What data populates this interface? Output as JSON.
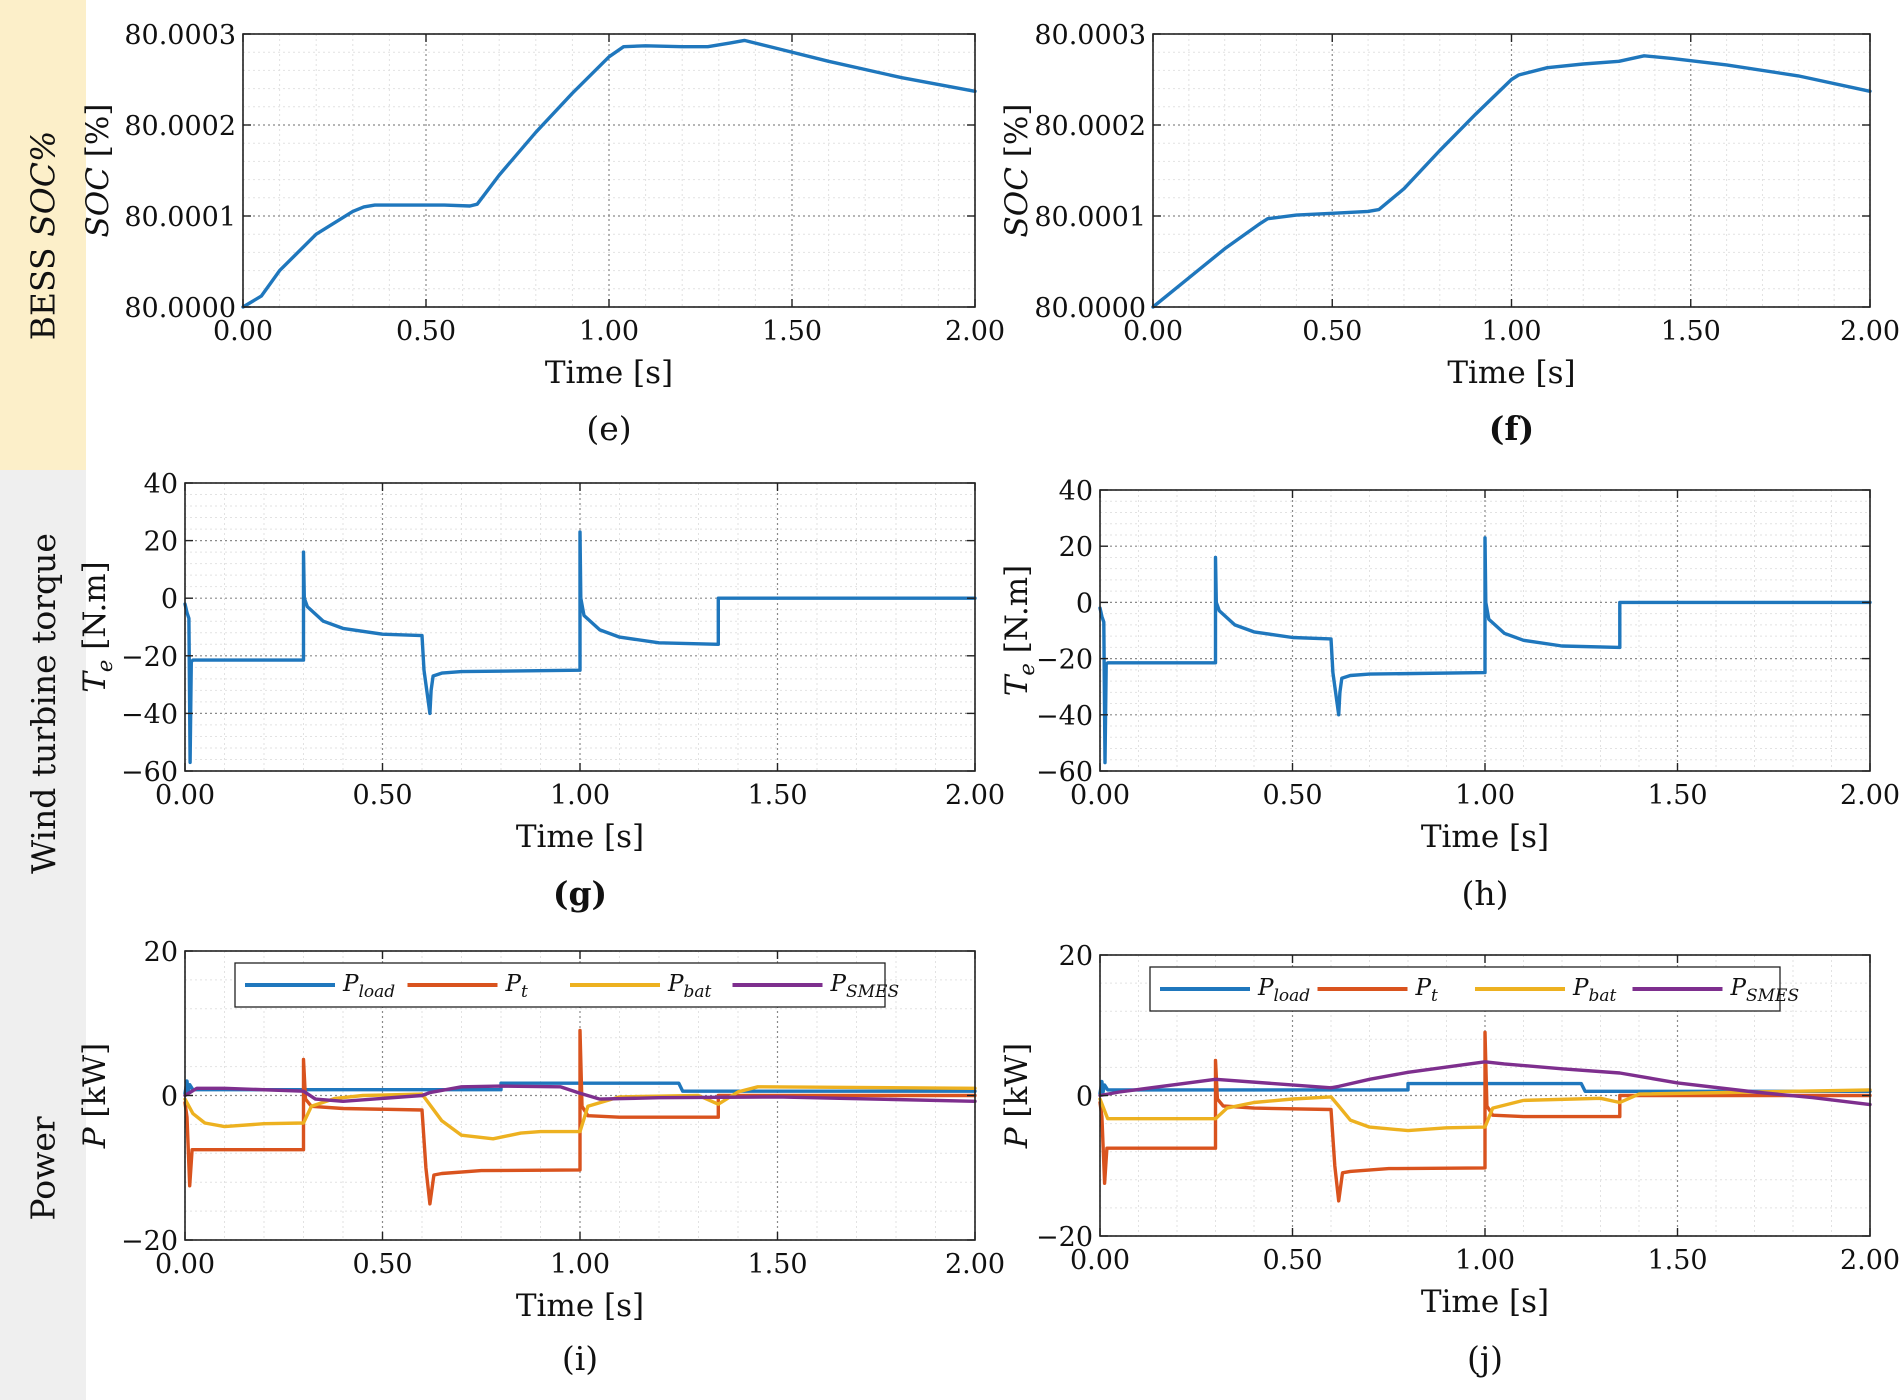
{
  "row_labels": {
    "soc_prefix": "BESS ",
    "soc_italic": "SOC%",
    "torque": "Wind turbine torque",
    "power": "Power"
  },
  "colors": {
    "band_soc": "#fcefc9",
    "band_other": "#efefef",
    "load": "#1f77bd",
    "pt": "#d9531e",
    "bat": "#edb120",
    "smes": "#7e2f8e",
    "soc_line": "#1f77bd"
  },
  "chart_data": [
    {
      "id": "e",
      "caption": "(e)",
      "caption_bold": false,
      "type": "line",
      "xlabel": "Time [s]",
      "ylabel": "SOC [%]",
      "xlim": [
        0,
        2
      ],
      "ylim": [
        0,
        3
      ],
      "xticks": [
        0,
        0.5,
        1,
        1.5,
        2
      ],
      "xtick_labels": [
        "0.00",
        "0.50",
        "1.00",
        "1.50",
        "2.00"
      ],
      "yticks": [
        0,
        1,
        2,
        3
      ],
      "ytick_labels": [
        "80.0000",
        "80.0001",
        "80.0002",
        "80.0003"
      ],
      "y_unit_note": "ticks in units of 1e-4 % above 80 %",
      "series": [
        {
          "name": "SOC",
          "color": "#1f77bd",
          "x": [
            0,
            0.05,
            0.1,
            0.2,
            0.3,
            0.33,
            0.36,
            0.45,
            0.55,
            0.62,
            0.64,
            0.7,
            0.8,
            0.9,
            1.0,
            1.04,
            1.1,
            1.2,
            1.27,
            1.33,
            1.37,
            1.45,
            1.6,
            1.8,
            2.0
          ],
          "y": [
            0,
            0.12,
            0.4,
            0.8,
            1.05,
            1.1,
            1.12,
            1.12,
            1.12,
            1.11,
            1.13,
            1.45,
            1.92,
            2.35,
            2.75,
            2.86,
            2.87,
            2.86,
            2.86,
            2.9,
            2.93,
            2.85,
            2.7,
            2.52,
            2.37
          ]
        }
      ]
    },
    {
      "id": "f",
      "caption": "(f)",
      "caption_bold": true,
      "type": "line",
      "xlabel": "Time [s]",
      "ylabel": "SOC [%]",
      "xlim": [
        0,
        2
      ],
      "ylim": [
        0,
        3
      ],
      "xticks": [
        0,
        0.5,
        1,
        1.5,
        2
      ],
      "xtick_labels": [
        "0.00",
        "0.50",
        "1.00",
        "1.50",
        "2.00"
      ],
      "yticks": [
        0,
        1,
        2,
        3
      ],
      "ytick_labels": [
        "80.0000",
        "80.0001",
        "80.0002",
        "80.0003"
      ],
      "y_unit_note": "ticks in units of 1e-4 % above 80 %",
      "series": [
        {
          "name": "SOC",
          "color": "#1f77bd",
          "x": [
            0,
            0.1,
            0.2,
            0.3,
            0.32,
            0.4,
            0.5,
            0.6,
            0.63,
            0.7,
            0.8,
            0.9,
            1.0,
            1.02,
            1.1,
            1.2,
            1.3,
            1.37,
            1.45,
            1.6,
            1.8,
            2.0
          ],
          "y": [
            0,
            0.32,
            0.64,
            0.92,
            0.97,
            1.01,
            1.03,
            1.05,
            1.07,
            1.3,
            1.72,
            2.12,
            2.5,
            2.55,
            2.63,
            2.67,
            2.7,
            2.76,
            2.73,
            2.66,
            2.54,
            2.37
          ]
        }
      ]
    },
    {
      "id": "g",
      "caption": "(g)",
      "caption_bold": true,
      "type": "line",
      "xlabel": "Time [s]",
      "ylabel": "Te [N.m]",
      "xlim": [
        0,
        2
      ],
      "ylim": [
        -60,
        40
      ],
      "xticks": [
        0,
        0.5,
        1,
        1.5,
        2
      ],
      "xtick_labels": [
        "0.00",
        "0.50",
        "1.00",
        "1.50",
        "2.00"
      ],
      "yticks": [
        -60,
        -40,
        -20,
        0,
        20,
        40
      ],
      "ytick_labels": [
        "−60",
        "−40",
        "−20",
        "0",
        "20",
        "40"
      ],
      "series": [
        {
          "name": "Te",
          "color": "#1f77bd",
          "x": [
            0,
            0.005,
            0.01,
            0.013,
            0.016,
            0.02,
            0.3,
            0.3,
            0.302,
            0.31,
            0.35,
            0.4,
            0.5,
            0.6,
            0.6,
            0.605,
            0.62,
            0.623,
            0.628,
            0.65,
            0.7,
            1.0,
            1.0,
            1.002,
            1.01,
            1.05,
            1.1,
            1.2,
            1.35,
            1.35,
            2.0
          ],
          "y": [
            -2,
            -5,
            -7,
            -57,
            -22,
            -21.5,
            -21.5,
            16,
            0,
            -3,
            -8,
            -10.5,
            -12.5,
            -13,
            -13,
            -25,
            -40,
            -32,
            -27,
            -26,
            -25.5,
            -25,
            23,
            0,
            -6,
            -11,
            -13.5,
            -15.5,
            -16,
            0,
            0
          ]
        }
      ]
    },
    {
      "id": "h",
      "caption": "(h)",
      "caption_bold": false,
      "type": "line",
      "xlabel": "Time [s]",
      "ylabel": "Te [N.m]",
      "xlim": [
        0,
        2
      ],
      "ylim": [
        -60,
        40
      ],
      "xticks": [
        0,
        0.5,
        1,
        1.5,
        2
      ],
      "xtick_labels": [
        "0.00",
        "0.50",
        "1.00",
        "1.50",
        "2.00"
      ],
      "yticks": [
        -60,
        -40,
        -20,
        0,
        20,
        40
      ],
      "ytick_labels": [
        "−60",
        "−40",
        "−20",
        "0",
        "20",
        "40"
      ],
      "series": [
        {
          "name": "Te",
          "color": "#1f77bd",
          "x": [
            0,
            0.005,
            0.01,
            0.013,
            0.016,
            0.02,
            0.3,
            0.3,
            0.302,
            0.31,
            0.35,
            0.4,
            0.5,
            0.6,
            0.6,
            0.605,
            0.62,
            0.623,
            0.628,
            0.65,
            0.7,
            1.0,
            1.0,
            1.002,
            1.01,
            1.05,
            1.1,
            1.2,
            1.35,
            1.35,
            2.0
          ],
          "y": [
            -2,
            -5,
            -7,
            -57,
            -22,
            -21.5,
            -21.5,
            16,
            0,
            -3,
            -8,
            -10.5,
            -12.5,
            -13,
            -13,
            -25,
            -40,
            -32,
            -27,
            -26,
            -25.5,
            -25,
            23,
            0,
            -6,
            -11,
            -13.5,
            -15.5,
            -16,
            0,
            0
          ]
        }
      ]
    },
    {
      "id": "i",
      "caption": "(i)",
      "caption_bold": false,
      "type": "line",
      "xlabel": "Time [s]",
      "ylabel": "P [kW]",
      "xlim": [
        0,
        2
      ],
      "ylim": [
        -20,
        20
      ],
      "xticks": [
        0,
        0.5,
        1,
        1.5,
        2
      ],
      "xtick_labels": [
        "0.00",
        "0.50",
        "1.00",
        "1.50",
        "2.00"
      ],
      "yticks": [
        -20,
        0,
        20
      ],
      "ytick_labels": [
        "−20",
        "0",
        "20"
      ],
      "legend": [
        "P_load",
        "P_t",
        "P_bat",
        "P_SMES"
      ],
      "series": [
        {
          "name": "P_load",
          "color": "#1f77bd",
          "x": [
            0,
            0.005,
            0.008,
            0.012,
            0.02,
            0.8,
            0.8,
            1.25,
            1.26,
            2.0
          ],
          "y": [
            0.3,
            2,
            0.5,
            1.5,
            0.8,
            0.8,
            1.7,
            1.7,
            0.6,
            0.6
          ]
        },
        {
          "name": "P_t",
          "color": "#d9531e",
          "x": [
            0,
            0.005,
            0.012,
            0.018,
            0.025,
            0.3,
            0.3,
            0.305,
            0.32,
            0.4,
            0.6,
            0.6,
            0.61,
            0.62,
            0.63,
            0.65,
            0.75,
            1.0,
            1.0,
            1.005,
            1.02,
            1.1,
            1.35,
            1.35,
            2.0
          ],
          "y": [
            -1,
            -3,
            -12.5,
            -7.5,
            -7.5,
            -7.5,
            5,
            -0.5,
            -1.5,
            -1.8,
            -2,
            -2,
            -10,
            -15,
            -11,
            -10.8,
            -10.4,
            -10.3,
            9,
            -1.5,
            -2.8,
            -3,
            -3,
            0,
            0
          ]
        },
        {
          "name": "P_bat",
          "color": "#edb120",
          "x": [
            0,
            0.02,
            0.05,
            0.1,
            0.2,
            0.3,
            0.3,
            0.32,
            0.38,
            0.45,
            0.6,
            0.6,
            0.65,
            0.7,
            0.78,
            0.85,
            0.9,
            1.0,
            1.0,
            1.02,
            1.1,
            1.3,
            1.35,
            1.4,
            1.45,
            2.0
          ],
          "y": [
            -0.5,
            -2.5,
            -3.8,
            -4.3,
            -3.9,
            -3.8,
            -3.8,
            -1.5,
            -0.4,
            0,
            0.2,
            0.2,
            -3.5,
            -5.5,
            -6,
            -5.2,
            -5,
            -5,
            -5,
            -1.5,
            -0.2,
            0,
            -1.2,
            0.5,
            1.2,
            1
          ]
        },
        {
          "name": "P_SMES",
          "color": "#7e2f8e",
          "x": [
            0,
            0.03,
            0.1,
            0.3,
            0.33,
            0.4,
            0.6,
            0.62,
            0.7,
            0.8,
            0.95,
            1.0,
            1.05,
            1.2,
            1.5,
            2.0
          ],
          "y": [
            0,
            1,
            1,
            0.6,
            -0.5,
            -0.8,
            0,
            0.4,
            1.2,
            1.3,
            1.2,
            0.3,
            -0.5,
            -0.3,
            -0.2,
            -0.8
          ]
        }
      ]
    },
    {
      "id": "j",
      "caption": "(j)",
      "caption_bold": false,
      "type": "line",
      "xlabel": "Time [s]",
      "ylabel": "P [kW]",
      "xlim": [
        0,
        2
      ],
      "ylim": [
        -20,
        20
      ],
      "xticks": [
        0,
        0.5,
        1,
        1.5,
        2
      ],
      "xtick_labels": [
        "0.00",
        "0.50",
        "1.00",
        "1.50",
        "2.00"
      ],
      "yticks": [
        -20,
        0,
        20
      ],
      "ytick_labels": [
        "−20",
        "0",
        "20"
      ],
      "legend": [
        "P_load",
        "P_t",
        "P_bat",
        "P_SMES"
      ],
      "series": [
        {
          "name": "P_load",
          "color": "#1f77bd",
          "x": [
            0,
            0.005,
            0.008,
            0.012,
            0.02,
            0.8,
            0.8,
            1.25,
            1.26,
            2.0
          ],
          "y": [
            0.3,
            2,
            0.5,
            1.5,
            0.8,
            0.8,
            1.7,
            1.7,
            0.6,
            0.6
          ]
        },
        {
          "name": "P_t",
          "color": "#d9531e",
          "x": [
            0,
            0.005,
            0.012,
            0.018,
            0.025,
            0.3,
            0.3,
            0.305,
            0.32,
            0.4,
            0.6,
            0.6,
            0.61,
            0.62,
            0.63,
            0.65,
            0.75,
            1.0,
            1.0,
            1.005,
            1.02,
            1.1,
            1.35,
            1.35,
            2.0
          ],
          "y": [
            -1,
            -3,
            -12.5,
            -7.5,
            -7.5,
            -7.5,
            5,
            -0.5,
            -1.5,
            -1.8,
            -2,
            -2,
            -10,
            -15,
            -11,
            -10.8,
            -10.4,
            -10.3,
            9,
            -1.5,
            -2.8,
            -3,
            -3,
            0,
            0
          ]
        },
        {
          "name": "P_bat",
          "color": "#edb120",
          "x": [
            0,
            0.02,
            0.1,
            0.3,
            0.3,
            0.33,
            0.4,
            0.5,
            0.6,
            0.62,
            0.65,
            0.7,
            0.8,
            0.9,
            1.0,
            1.0,
            1.02,
            1.1,
            1.3,
            1.35,
            1.4,
            2.0
          ],
          "y": [
            -0.5,
            -3.3,
            -3.3,
            -3.3,
            -3.3,
            -1.8,
            -1,
            -0.5,
            -0.2,
            -1.5,
            -3.5,
            -4.5,
            -5,
            -4.6,
            -4.5,
            -4.5,
            -1.8,
            -0.7,
            -0.4,
            -1,
            0.2,
            0.8
          ]
        },
        {
          "name": "P_SMES",
          "color": "#7e2f8e",
          "x": [
            0,
            0.05,
            0.3,
            0.6,
            0.62,
            0.7,
            0.8,
            1.0,
            1.05,
            1.2,
            1.35,
            1.5,
            1.7,
            1.85,
            2.0
          ],
          "y": [
            0,
            0.5,
            2.3,
            1.1,
            1.3,
            2.3,
            3.3,
            4.8,
            4.5,
            3.8,
            3.2,
            1.8,
            0.5,
            -0.3,
            -1.3
          ]
        }
      ]
    }
  ]
}
